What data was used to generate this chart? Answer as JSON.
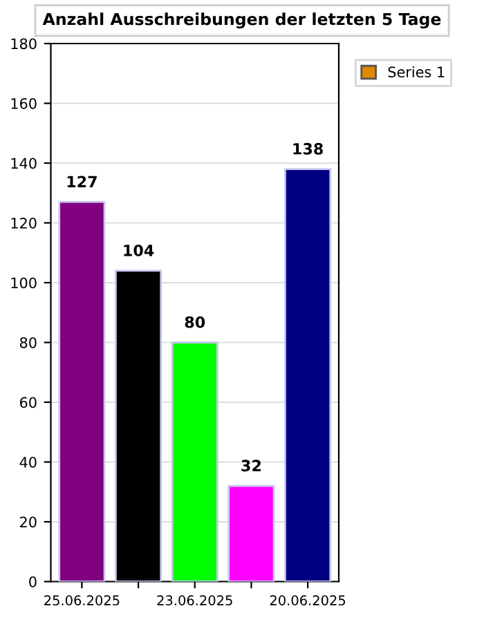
{
  "chart_data": {
    "type": "bar",
    "title": "Anzahl Ausschreibungen der letzten 5 Tage",
    "categories": [
      "25.06.2025",
      null,
      "23.06.2025",
      null,
      "20.06.2025"
    ],
    "series": [
      {
        "name": "Series 1",
        "color": "#e08a00",
        "values": [
          127,
          104,
          80,
          32,
          138
        ],
        "colors": [
          "#800080",
          "#000000",
          "#00ff00",
          "#ff00ff",
          "#000080"
        ]
      }
    ],
    "ylim": [
      0,
      180
    ],
    "yticks": [
      0,
      20,
      40,
      60,
      80,
      100,
      120,
      140,
      160,
      180
    ],
    "grid": "y",
    "legend": "top right",
    "data_labels": true
  }
}
